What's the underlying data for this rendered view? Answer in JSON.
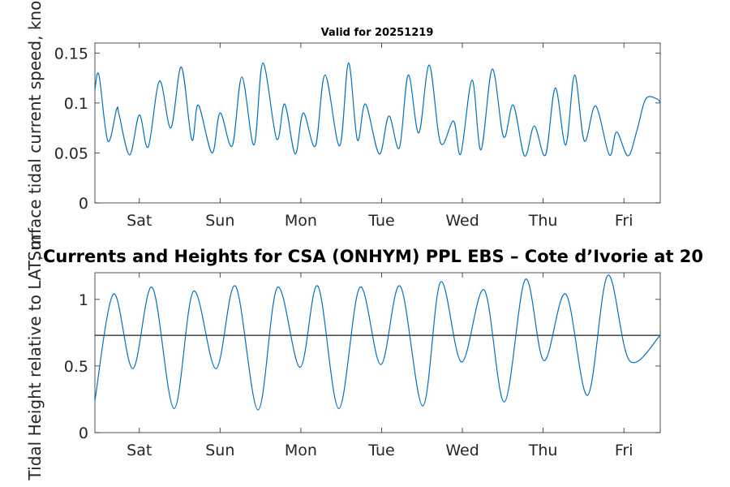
{
  "chart_data": [
    {
      "type": "line",
      "title": "Valid for 20251219",
      "xlabel": "",
      "ylabel": "Surface tidal current speed, knots",
      "xlim": [
        0,
        7
      ],
      "ylim": [
        0,
        0.16
      ],
      "yticks": [
        0,
        0.05,
        0.1,
        0.15
      ],
      "ytick_labels": [
        "0",
        "0.05",
        "0.1",
        "0.15"
      ],
      "xticks": [
        0.55,
        1.55,
        2.55,
        3.55,
        4.55,
        5.55,
        6.55
      ],
      "xtick_labels": [
        "Sat",
        "Sun",
        "Mon",
        "Tue",
        "Wed",
        "Thu",
        "Fri"
      ],
      "grid": false,
      "color": "#0072BD",
      "series": [
        {
          "name": "Surface tidal current speed",
          "x": [
            0.0,
            0.05,
            0.16,
            0.27,
            0.3,
            0.43,
            0.55,
            0.66,
            0.8,
            0.94,
            1.07,
            1.2,
            1.28,
            1.45,
            1.55,
            1.7,
            1.82,
            1.97,
            2.08,
            2.25,
            2.35,
            2.48,
            2.58,
            2.73,
            2.85,
            3.03,
            3.14,
            3.25,
            3.35,
            3.52,
            3.64,
            3.77,
            3.88,
            4.01,
            4.14,
            4.28,
            4.44,
            4.53,
            4.67,
            4.78,
            4.92,
            5.06,
            5.18,
            5.32,
            5.44,
            5.58,
            5.7,
            5.83,
            5.94,
            6.06,
            6.2,
            6.37,
            6.46,
            6.6,
            6.71,
            6.82,
            6.96,
            7.0
          ],
          "values": [
            0.113,
            0.128,
            0.062,
            0.094,
            0.088,
            0.048,
            0.088,
            0.056,
            0.122,
            0.075,
            0.136,
            0.063,
            0.098,
            0.05,
            0.09,
            0.057,
            0.126,
            0.058,
            0.14,
            0.064,
            0.099,
            0.049,
            0.09,
            0.057,
            0.128,
            0.057,
            0.14,
            0.063,
            0.099,
            0.049,
            0.087,
            0.055,
            0.128,
            0.07,
            0.138,
            0.06,
            0.082,
            0.049,
            0.123,
            0.053,
            0.134,
            0.066,
            0.098,
            0.047,
            0.077,
            0.048,
            0.115,
            0.058,
            0.128,
            0.062,
            0.097,
            0.048,
            0.071,
            0.047,
            0.072,
            0.104,
            0.104,
            0.1
          ]
        }
      ]
    },
    {
      "type": "line",
      "title": "Currents and Heights for CSA (ONHYM) PPL EBS  – Cote d’Ivorie at 20",
      "xlabel": "",
      "ylabel": "Tidal Height relative to LAT, m",
      "xlim": [
        0,
        7
      ],
      "ylim": [
        0,
        1.2
      ],
      "yticks": [
        0,
        0.5,
        1
      ],
      "ytick_labels": [
        "0",
        "0.5",
        "1"
      ],
      "xticks": [
        0.55,
        1.55,
        2.55,
        3.55,
        4.55,
        5.55,
        6.55
      ],
      "xtick_labels": [
        "Sat",
        "Sun",
        "Mon",
        "Tue",
        "Wed",
        "Thu",
        "Fri"
      ],
      "grid": false,
      "color": "#0072BD",
      "reference_line": {
        "value": 0.73,
        "color": "#333333"
      },
      "series": [
        {
          "name": "Tidal height",
          "x": [
            0.0,
            0.23,
            0.47,
            0.71,
            0.98,
            1.22,
            1.5,
            1.74,
            2.02,
            2.26,
            2.54,
            2.76,
            3.02,
            3.28,
            3.54,
            3.78,
            4.06,
            4.28,
            4.54,
            4.82,
            5.07,
            5.33,
            5.56,
            5.83,
            6.1,
            6.35,
            6.62,
            7.0
          ],
          "values": [
            0.24,
            1.04,
            0.48,
            1.09,
            0.18,
            1.06,
            0.48,
            1.1,
            0.17,
            1.09,
            0.49,
            1.1,
            0.18,
            1.09,
            0.51,
            1.1,
            0.2,
            1.13,
            0.53,
            1.07,
            0.23,
            1.15,
            0.54,
            1.04,
            0.28,
            1.18,
            0.54,
            0.73
          ]
        }
      ]
    }
  ]
}
